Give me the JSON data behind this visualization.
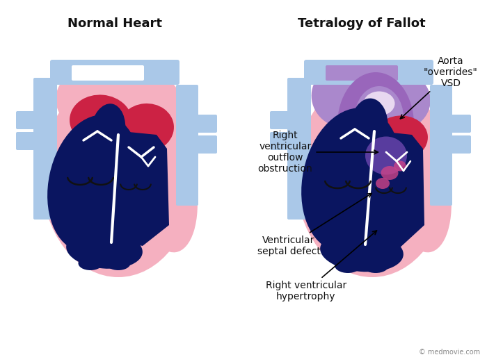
{
  "title_left": "Normal Heart",
  "title_right": "Tetralogy of Fallot",
  "bg_color": "#ffffff",
  "title_fontsize": 13,
  "annotation_fontsize": 10,
  "watermark": "© medmovie.com",
  "colors": {
    "light_pink": "#f5b0c0",
    "pink": "#f08090",
    "darker_pink": "#e07080",
    "red": "#cc2244",
    "crimson": "#bb1133",
    "navy": "#0a1560",
    "dark_navy": "#091250",
    "light_blue": "#aac8e8",
    "blue_gray": "#90aed0",
    "purple": "#7755bb",
    "light_purple": "#aa88cc",
    "medium_purple": "#9966bb",
    "dark_purple": "#6644aa",
    "white": "#ffffff",
    "outline": "#222222"
  }
}
